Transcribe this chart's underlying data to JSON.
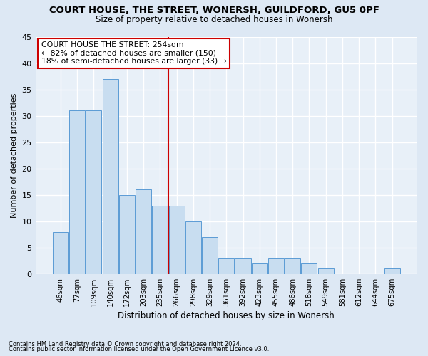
{
  "title1": "COURT HOUSE, THE STREET, WONERSH, GUILDFORD, GU5 0PF",
  "title2": "Size of property relative to detached houses in Wonersh",
  "xlabel": "Distribution of detached houses by size in Wonersh",
  "ylabel": "Number of detached properties",
  "bar_labels": [
    "46sqm",
    "77sqm",
    "109sqm",
    "140sqm",
    "172sqm",
    "203sqm",
    "235sqm",
    "266sqm",
    "298sqm",
    "329sqm",
    "361sqm",
    "392sqm",
    "423sqm",
    "455sqm",
    "486sqm",
    "518sqm",
    "549sqm",
    "581sqm",
    "612sqm",
    "644sqm",
    "675sqm"
  ],
  "bar_values": [
    8,
    31,
    31,
    37,
    15,
    16,
    13,
    13,
    10,
    7,
    3,
    3,
    2,
    3,
    3,
    2,
    1,
    0,
    0,
    0,
    1
  ],
  "bar_color": "#c8ddf0",
  "bar_edge_color": "#5b9bd5",
  "vline_color": "#cc0000",
  "annotation_title": "COURT HOUSE THE STREET: 254sqm",
  "annotation_line1": "← 82% of detached houses are smaller (150)",
  "annotation_line2": "18% of semi-detached houses are larger (33) →",
  "annotation_box_color": "#ffffff",
  "annotation_box_edge": "#cc0000",
  "ylim": [
    0,
    45
  ],
  "yticks": [
    0,
    5,
    10,
    15,
    20,
    25,
    30,
    35,
    40,
    45
  ],
  "footnote1": "Contains HM Land Registry data © Crown copyright and database right 2024.",
  "footnote2": "Contains public sector information licensed under the Open Government Licence v3.0.",
  "background_color": "#dde8f4",
  "plot_bg_color": "#e8f0f8"
}
